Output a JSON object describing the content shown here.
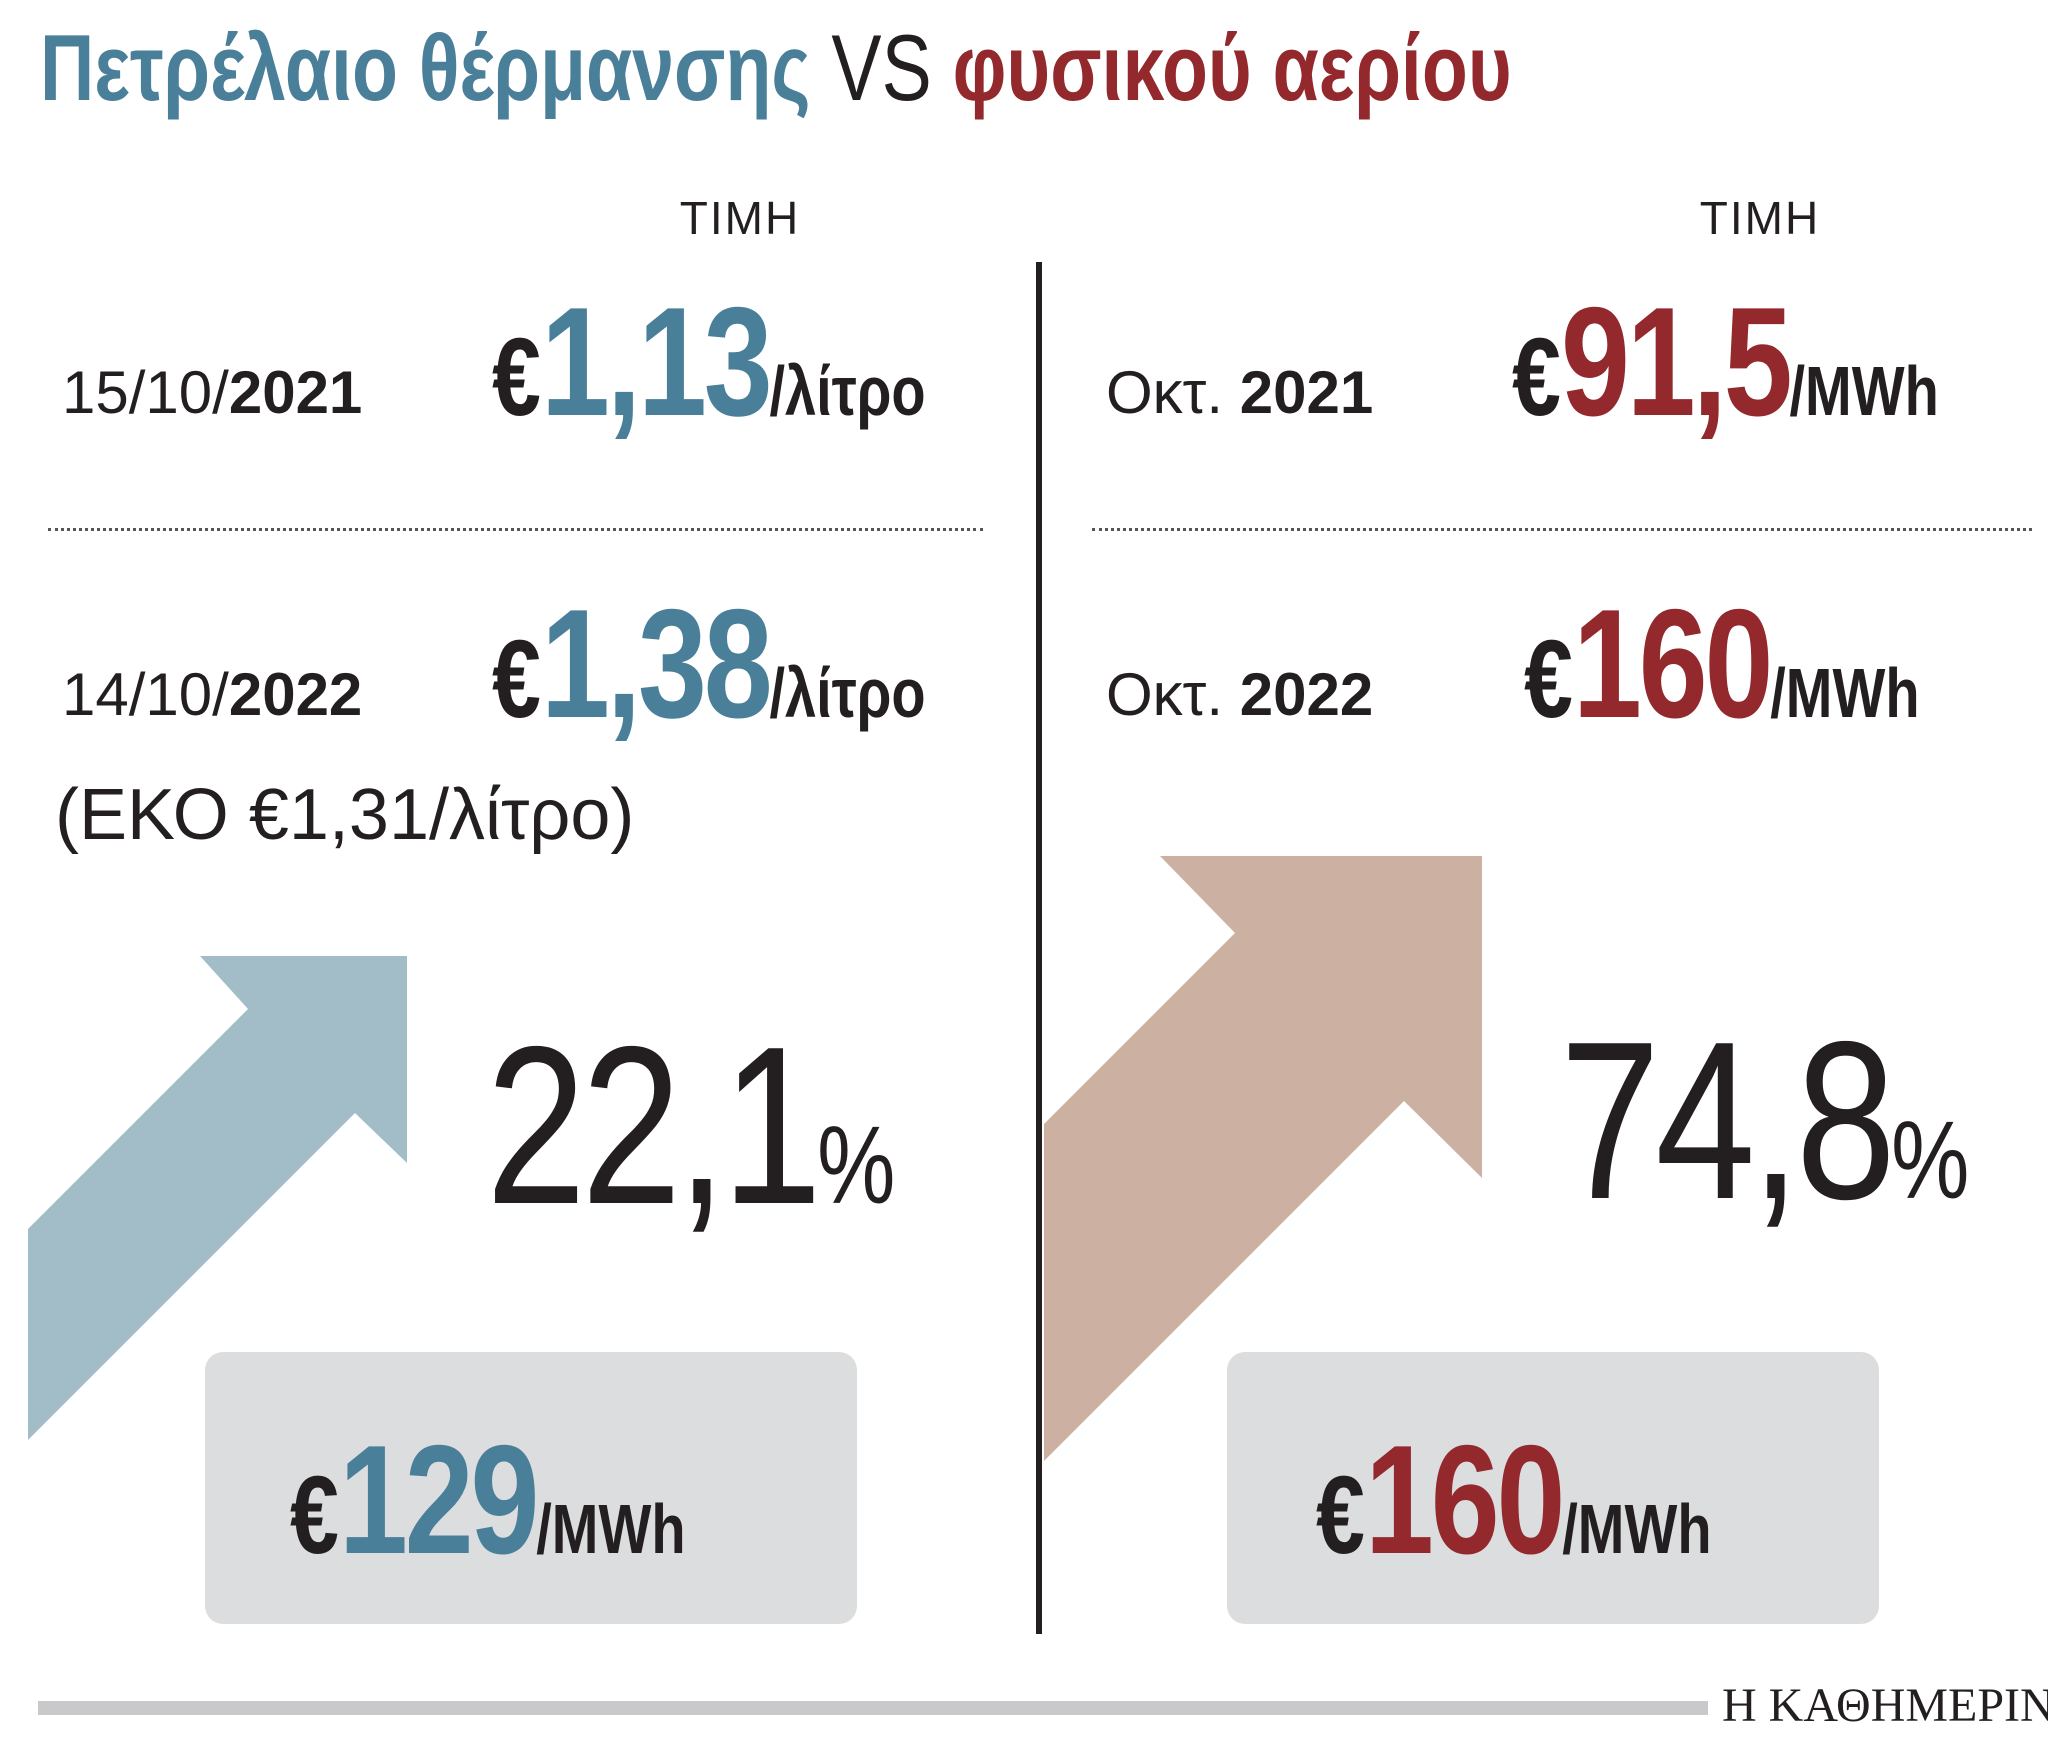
{
  "title": {
    "oil": "Πετρέλαιο θέρμανσης",
    "vs": "VS",
    "gas": "φυσικού αερίου"
  },
  "colors": {
    "oil": "#4a7f99",
    "gas": "#93282d",
    "oil_arrow": "#a2bcc8",
    "gas_arrow": "#ccb1a2",
    "box": "#dcdddf"
  },
  "left": {
    "header": "ΤΙΜΗ",
    "row1": {
      "date_prefix": "15/10/",
      "date_year": "2021",
      "euro": "€",
      "value": "1,13",
      "unit": "/λίτρο"
    },
    "row2": {
      "date_prefix": "14/10/",
      "date_year": "2022",
      "euro": "€",
      "value": "1,38",
      "unit": "/λίτρο"
    },
    "note": "(ΕΚΟ €1,31/λίτρο)",
    "change": {
      "value": "22,1",
      "symbol": "%"
    },
    "box": {
      "euro": "€",
      "value": "129",
      "unit": "/MWh"
    },
    "arrow_icon": "arrow-up-right-icon"
  },
  "right": {
    "header": "ΤΙΜΗ",
    "row1": {
      "date_prefix": "Οκτ. ",
      "date_year": "2021",
      "euro": "€",
      "value": "91,5",
      "unit": "/MWh"
    },
    "row2": {
      "date_prefix": "Οκτ. ",
      "date_year": "2022",
      "euro": "€",
      "value": "160",
      "unit": "/MWh"
    },
    "change": {
      "value": "74,8",
      "symbol": "%"
    },
    "box": {
      "euro": "€",
      "value": "160",
      "unit": "/MWh"
    },
    "arrow_icon": "arrow-up-right-icon"
  },
  "brand": "Η ΚΑΘΗΜΕΡΙΝΗ"
}
